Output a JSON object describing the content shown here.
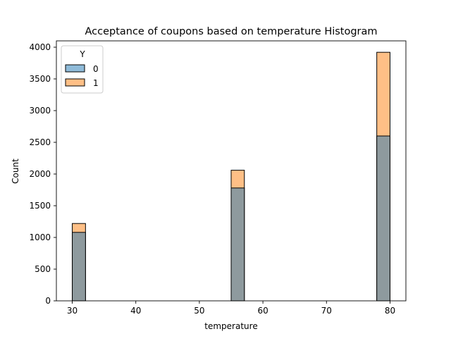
{
  "chart_data": {
    "type": "bar",
    "title": "Acceptance of coupons based on temperature Histogram",
    "xlabel": "temperature",
    "ylabel": "Count",
    "xlim": [
      27.5,
      82.5
    ],
    "ylim": [
      0,
      4100
    ],
    "x_ticks": [
      30,
      40,
      50,
      60,
      70,
      80
    ],
    "y_ticks": [
      0,
      500,
      1000,
      1500,
      2000,
      2500,
      3000,
      3500,
      4000
    ],
    "bin_width": 2.083,
    "legend": {
      "title": "Y",
      "position": "top-left",
      "entries": [
        "0",
        "1"
      ]
    },
    "series": [
      {
        "name": "0",
        "color": "#1f77b4",
        "bins": [
          {
            "x_start": 30.0,
            "x_end": 32.083,
            "count": 1080
          },
          {
            "x_start": 55.0,
            "x_end": 57.083,
            "count": 1780
          },
          {
            "x_start": 77.917,
            "x_end": 80.0,
            "count": 2600
          }
        ]
      },
      {
        "name": "1",
        "color": "#ff7f0e",
        "bins": [
          {
            "x_start": 30.0,
            "x_end": 32.083,
            "count": 1220
          },
          {
            "x_start": 55.0,
            "x_end": 57.083,
            "count": 2060
          },
          {
            "x_start": 77.917,
            "x_end": 80.0,
            "count": 3920
          }
        ]
      }
    ],
    "overlap_color": "#8e9a9e",
    "alpha": 0.5
  }
}
